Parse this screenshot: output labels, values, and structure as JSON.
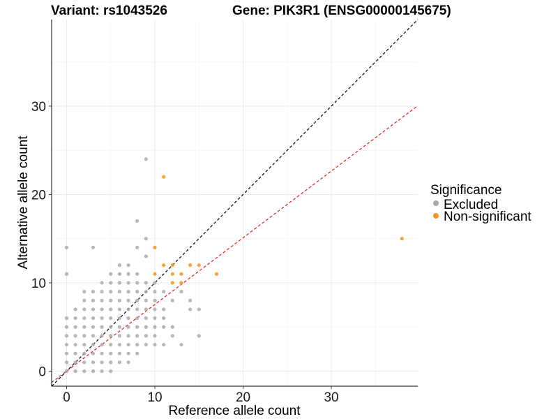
{
  "chart_data": {
    "type": "scatter",
    "title_variant": "Variant: rs1043526",
    "title_gene": "Gene: PIK3R1 (ENSG00000145675)",
    "xlabel": "Reference allele count",
    "ylabel": "Alternative allele count",
    "xlim": [
      -1.7,
      39.8
    ],
    "ylim": [
      -1.7,
      39.8
    ],
    "xticks": [
      0,
      10,
      20,
      30
    ],
    "yticks": [
      0,
      10,
      20,
      30
    ],
    "xtick_labels": [
      "0",
      "10",
      "20",
      "30"
    ],
    "ytick_labels": [
      "0",
      "10",
      "20",
      "30"
    ],
    "grid": true,
    "legend": {
      "title": "Significance",
      "position": "right",
      "entries": [
        {
          "label": "Excluded",
          "color": "#aaaaaa"
        },
        {
          "label": "Non-significant",
          "color": "#f7941d"
        }
      ]
    },
    "reference_lines": [
      {
        "name": "identity",
        "slope": 1,
        "intercept": 0,
        "color": "#000000",
        "style": "dashed"
      },
      {
        "name": "expected-ratio",
        "slope": 0.755,
        "intercept": 0,
        "color": "#e41a1c",
        "style": "dashed"
      }
    ],
    "series": [
      {
        "name": "Excluded",
        "color": "#aaaaaa",
        "points": [
          [
            0,
            0
          ],
          [
            0,
            1
          ],
          [
            0,
            2
          ],
          [
            0,
            3
          ],
          [
            0,
            4
          ],
          [
            0,
            5
          ],
          [
            0,
            6
          ],
          [
            0,
            11
          ],
          [
            0,
            14
          ],
          [
            1,
            0
          ],
          [
            1,
            1
          ],
          [
            1,
            2
          ],
          [
            1,
            3
          ],
          [
            1,
            4
          ],
          [
            1,
            5
          ],
          [
            1,
            6
          ],
          [
            1,
            7
          ],
          [
            2,
            0
          ],
          [
            2,
            1
          ],
          [
            2,
            2
          ],
          [
            2,
            3
          ],
          [
            2,
            4
          ],
          [
            2,
            5
          ],
          [
            2,
            6
          ],
          [
            2,
            7
          ],
          [
            2,
            8
          ],
          [
            2,
            9
          ],
          [
            3,
            0
          ],
          [
            3,
            1
          ],
          [
            3,
            2
          ],
          [
            3,
            3
          ],
          [
            3,
            4
          ],
          [
            3,
            5
          ],
          [
            3,
            6
          ],
          [
            3,
            7
          ],
          [
            3,
            8
          ],
          [
            3,
            9
          ],
          [
            3,
            14
          ],
          [
            4,
            0
          ],
          [
            4,
            1
          ],
          [
            4,
            2
          ],
          [
            4,
            3
          ],
          [
            4,
            4
          ],
          [
            4,
            5
          ],
          [
            4,
            6
          ],
          [
            4,
            7
          ],
          [
            4,
            8
          ],
          [
            4,
            9
          ],
          [
            4,
            10
          ],
          [
            5,
            0
          ],
          [
            5,
            1
          ],
          [
            5,
            2
          ],
          [
            5,
            3
          ],
          [
            5,
            4
          ],
          [
            5,
            5
          ],
          [
            5,
            6
          ],
          [
            5,
            7
          ],
          [
            5,
            8
          ],
          [
            5,
            9
          ],
          [
            5,
            10
          ],
          [
            5,
            11
          ],
          [
            6,
            1
          ],
          [
            6,
            2
          ],
          [
            6,
            3
          ],
          [
            6,
            4
          ],
          [
            6,
            5
          ],
          [
            6,
            6
          ],
          [
            6,
            7
          ],
          [
            6,
            8
          ],
          [
            6,
            9
          ],
          [
            6,
            10
          ],
          [
            6,
            11
          ],
          [
            6,
            12
          ],
          [
            7,
            1
          ],
          [
            7,
            2
          ],
          [
            7,
            3
          ],
          [
            7,
            4
          ],
          [
            7,
            5
          ],
          [
            7,
            6
          ],
          [
            7,
            7
          ],
          [
            7,
            8
          ],
          [
            7,
            9
          ],
          [
            7,
            10
          ],
          [
            7,
            11
          ],
          [
            7,
            12
          ],
          [
            8,
            2
          ],
          [
            8,
            3
          ],
          [
            8,
            4
          ],
          [
            8,
            5
          ],
          [
            8,
            6
          ],
          [
            8,
            7
          ],
          [
            8,
            8
          ],
          [
            8,
            9
          ],
          [
            8,
            10
          ],
          [
            8,
            11
          ],
          [
            8,
            14
          ],
          [
            8,
            17
          ],
          [
            9,
            3
          ],
          [
            9,
            4
          ],
          [
            9,
            5
          ],
          [
            9,
            6
          ],
          [
            9,
            7
          ],
          [
            9,
            8
          ],
          [
            9,
            9
          ],
          [
            9,
            10
          ],
          [
            9,
            13
          ],
          [
            9,
            15
          ],
          [
            9,
            24
          ],
          [
            10,
            3
          ],
          [
            10,
            4
          ],
          [
            10,
            5
          ],
          [
            10,
            6
          ],
          [
            10,
            7
          ],
          [
            10,
            8
          ],
          [
            10,
            9
          ],
          [
            10,
            10
          ],
          [
            11,
            3
          ],
          [
            11,
            5
          ],
          [
            11,
            6
          ],
          [
            11,
            7
          ],
          [
            11,
            9
          ],
          [
            12,
            4
          ],
          [
            12,
            5
          ],
          [
            12,
            8
          ],
          [
            13,
            3
          ],
          [
            13,
            9
          ],
          [
            14,
            7
          ],
          [
            14,
            8
          ],
          [
            15,
            4
          ],
          [
            15,
            7
          ]
        ]
      },
      {
        "name": "Non-significant",
        "color": "#f7941d",
        "points": [
          [
            10,
            11
          ],
          [
            10,
            14
          ],
          [
            11,
            12
          ],
          [
            11,
            22
          ],
          [
            12,
            10
          ],
          [
            12,
            11
          ],
          [
            12,
            12
          ],
          [
            13,
            10
          ],
          [
            13,
            11
          ],
          [
            14,
            12
          ],
          [
            15,
            12
          ],
          [
            17,
            11
          ],
          [
            38,
            15
          ]
        ]
      }
    ]
  }
}
